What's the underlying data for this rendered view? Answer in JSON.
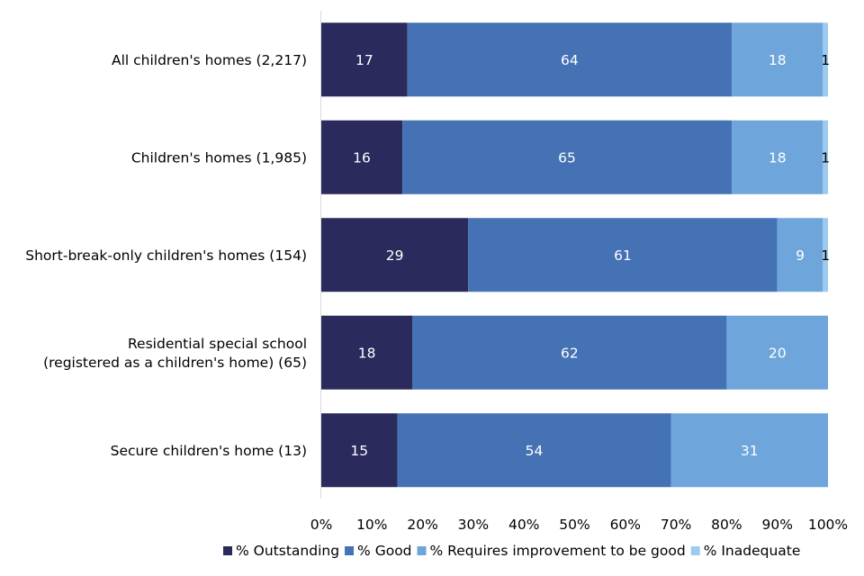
{
  "chart_data": {
    "type": "bar",
    "orientation": "horizontal",
    "stacked": true,
    "categories": [
      [
        "All children's homes (2,217)"
      ],
      [
        "Children's homes (1,985)"
      ],
      [
        "Short-break-only children's homes (154)"
      ],
      [
        "Residential special school",
        "(registered as a children's home) (65)"
      ],
      [
        "Secure children's home (13)"
      ]
    ],
    "series": [
      {
        "name": "% Outstanding",
        "color": "#2b2a5c",
        "label_color": "#ffffff",
        "values": [
          17,
          16,
          29,
          18,
          15
        ]
      },
      {
        "name": "% Good",
        "color": "#4472b4",
        "label_color": "#ffffff",
        "values": [
          64,
          65,
          61,
          62,
          54
        ]
      },
      {
        "name": "% Requires improvement to be good",
        "color": "#6ea6db",
        "label_color": "#ffffff",
        "values": [
          18,
          18,
          9,
          20,
          31
        ]
      },
      {
        "name": "% Inadequate",
        "color": "#9dcbf0",
        "label_color": "#000000",
        "values": [
          1,
          1,
          1,
          0,
          0
        ]
      }
    ],
    "xlim": [
      0,
      100
    ],
    "x_ticks": [
      "0%",
      "10%",
      "20%",
      "30%",
      "40%",
      "50%",
      "60%",
      "70%",
      "80%",
      "90%",
      "100%"
    ],
    "grid": false,
    "legend_position": "bottom"
  }
}
